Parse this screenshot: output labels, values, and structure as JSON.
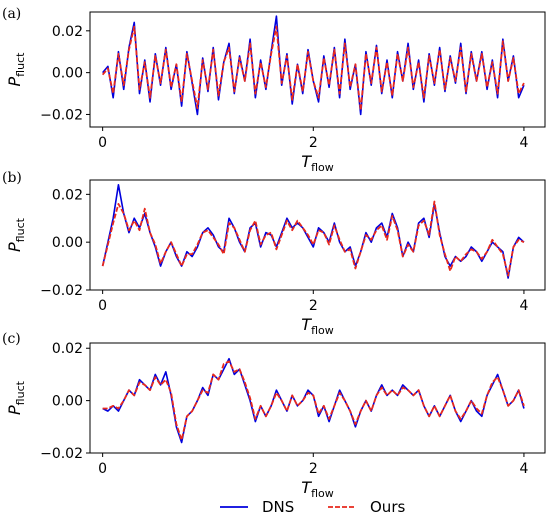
{
  "chart_data": [
    {
      "type": "line",
      "panel_label": "(a)",
      "xlabel": "T",
      "xlabel_sub": "flow",
      "ylabel": "P",
      "ylabel_sub": "fluct",
      "xlim": [
        -0.12,
        4.2
      ],
      "ylim": [
        -0.026,
        0.029
      ],
      "xticks": [
        0,
        2,
        4
      ],
      "xtick_labels": [
        "0",
        "2",
        "4"
      ],
      "yticks": [
        -0.02,
        0.0,
        0.02
      ],
      "ytick_labels": [
        "−0.02",
        "0.00",
        "0.02"
      ],
      "grid": false,
      "x": [
        0,
        0.05,
        0.1,
        0.15,
        0.2,
        0.25,
        0.3,
        0.35,
        0.4,
        0.45,
        0.5,
        0.55,
        0.6,
        0.65,
        0.7,
        0.75,
        0.8,
        0.85,
        0.9,
        0.95,
        1.0,
        1.05,
        1.1,
        1.15,
        1.2,
        1.25,
        1.3,
        1.35,
        1.4,
        1.45,
        1.5,
        1.55,
        1.6,
        1.65,
        1.7,
        1.75,
        1.8,
        1.85,
        1.9,
        1.95,
        2.0,
        2.05,
        2.1,
        2.15,
        2.2,
        2.25,
        2.3,
        2.35,
        2.4,
        2.45,
        2.5,
        2.55,
        2.6,
        2.65,
        2.7,
        2.75,
        2.8,
        2.85,
        2.9,
        2.95,
        3.0,
        3.05,
        3.1,
        3.15,
        3.2,
        3.25,
        3.3,
        3.35,
        3.4,
        3.45,
        3.5,
        3.55,
        3.6,
        3.65,
        3.7,
        3.75,
        3.8,
        3.85,
        3.9,
        3.95,
        4.0
      ],
      "series": [
        {
          "name": "DNS",
          "color": "#0000dd",
          "dash": "solid",
          "values": [
            0.0,
            0.003,
            -0.012,
            0.01,
            -0.008,
            0.012,
            0.024,
            -0.01,
            0.006,
            -0.014,
            0.009,
            -0.006,
            0.012,
            -0.008,
            0.004,
            -0.016,
            0.01,
            -0.005,
            -0.02,
            0.007,
            -0.009,
            0.012,
            -0.013,
            0.005,
            0.014,
            -0.01,
            0.008,
            -0.004,
            0.016,
            -0.012,
            0.006,
            -0.008,
            0.01,
            0.027,
            -0.006,
            0.009,
            -0.015,
            0.004,
            -0.01,
            0.011,
            -0.004,
            -0.014,
            0.008,
            -0.007,
            0.012,
            -0.012,
            0.016,
            -0.008,
            0.004,
            -0.02,
            0.01,
            -0.006,
            0.013,
            -0.01,
            0.006,
            -0.012,
            0.01,
            -0.004,
            0.014,
            -0.008,
            0.006,
            -0.014,
            0.009,
            -0.006,
            0.012,
            -0.009,
            0.008,
            -0.005,
            0.014,
            -0.01,
            0.01,
            -0.004,
            0.01,
            -0.008,
            0.006,
            -0.012,
            0.016,
            -0.004,
            0.008,
            -0.012,
            -0.006
          ]
        },
        {
          "name": "Ours",
          "color": "#e8291c",
          "dash": "dashed",
          "values": [
            -0.001,
            0.002,
            -0.01,
            0.009,
            -0.006,
            0.011,
            0.022,
            -0.008,
            0.005,
            -0.012,
            0.008,
            -0.005,
            0.011,
            -0.007,
            0.004,
            -0.014,
            0.009,
            -0.004,
            -0.017,
            0.006,
            -0.008,
            0.011,
            -0.011,
            0.005,
            0.012,
            -0.009,
            0.007,
            -0.004,
            0.014,
            -0.01,
            0.005,
            -0.007,
            0.009,
            0.022,
            -0.005,
            0.008,
            -0.013,
            0.004,
            -0.009,
            0.01,
            -0.004,
            -0.012,
            0.007,
            -0.006,
            0.011,
            -0.01,
            0.014,
            -0.007,
            0.004,
            -0.018,
            0.009,
            -0.005,
            0.012,
            -0.009,
            0.005,
            -0.011,
            0.009,
            -0.004,
            0.012,
            -0.007,
            0.005,
            -0.012,
            0.008,
            -0.005,
            0.011,
            -0.008,
            0.007,
            -0.004,
            0.012,
            -0.009,
            0.009,
            -0.004,
            0.009,
            -0.007,
            0.005,
            -0.01,
            0.015,
            -0.004,
            0.007,
            -0.01,
            -0.005
          ]
        }
      ]
    },
    {
      "type": "line",
      "panel_label": "(b)",
      "xlabel": "T",
      "xlabel_sub": "flow",
      "ylabel": "P",
      "ylabel_sub": "fluct",
      "xlim": [
        -0.12,
        4.2
      ],
      "ylim": [
        -0.02,
        0.026
      ],
      "xticks": [
        0,
        2,
        4
      ],
      "xtick_labels": [
        "0",
        "2",
        "4"
      ],
      "yticks": [
        -0.02,
        0.0,
        0.02
      ],
      "ytick_labels": [
        "−0.02",
        "0.00",
        "0.02"
      ],
      "grid": false,
      "x": [
        0,
        0.05,
        0.1,
        0.15,
        0.2,
        0.25,
        0.3,
        0.35,
        0.4,
        0.45,
        0.5,
        0.55,
        0.6,
        0.65,
        0.7,
        0.75,
        0.8,
        0.85,
        0.9,
        0.95,
        1.0,
        1.05,
        1.1,
        1.15,
        1.2,
        1.25,
        1.3,
        1.35,
        1.4,
        1.45,
        1.5,
        1.55,
        1.6,
        1.65,
        1.7,
        1.75,
        1.8,
        1.85,
        1.9,
        1.95,
        2.0,
        2.05,
        2.1,
        2.15,
        2.2,
        2.25,
        2.3,
        2.35,
        2.4,
        2.45,
        2.5,
        2.55,
        2.6,
        2.65,
        2.7,
        2.75,
        2.8,
        2.85,
        2.9,
        2.95,
        3.0,
        3.05,
        3.1,
        3.15,
        3.2,
        3.25,
        3.3,
        3.35,
        3.4,
        3.45,
        3.5,
        3.55,
        3.6,
        3.65,
        3.7,
        3.75,
        3.8,
        3.85,
        3.9,
        3.95,
        4.0
      ],
      "series": [
        {
          "name": "DNS",
          "color": "#0000dd",
          "dash": "solid",
          "values": [
            -0.01,
            0.0,
            0.01,
            0.024,
            0.012,
            0.004,
            0.01,
            0.006,
            0.012,
            0.004,
            -0.002,
            -0.01,
            -0.004,
            0.0,
            -0.006,
            -0.01,
            -0.004,
            -0.006,
            -0.002,
            0.004,
            0.006,
            0.003,
            -0.002,
            -0.004,
            0.01,
            0.006,
            0.0,
            -0.004,
            0.006,
            0.008,
            -0.002,
            0.004,
            0.003,
            -0.002,
            0.004,
            0.01,
            0.006,
            0.008,
            0.006,
            0.002,
            -0.002,
            0.006,
            0.004,
            0.0,
            0.008,
            0.0,
            -0.004,
            -0.002,
            -0.01,
            -0.004,
            0.004,
            0.0,
            0.006,
            0.008,
            0.002,
            0.012,
            0.006,
            -0.006,
            0.0,
            -0.004,
            0.008,
            0.01,
            0.002,
            0.016,
            0.004,
            -0.006,
            -0.01,
            -0.006,
            -0.008,
            -0.006,
            -0.002,
            -0.004,
            -0.008,
            -0.004,
            0.0,
            -0.002,
            -0.004,
            -0.015,
            -0.002,
            0.002,
            0.0
          ]
        },
        {
          "name": "Ours",
          "color": "#e8291c",
          "dash": "dashed",
          "values": [
            -0.01,
            -0.001,
            0.008,
            0.016,
            0.012,
            0.005,
            0.009,
            0.005,
            0.014,
            0.004,
            -0.001,
            -0.009,
            -0.004,
            0.0,
            -0.005,
            -0.01,
            -0.005,
            -0.005,
            -0.001,
            0.004,
            0.005,
            0.002,
            -0.001,
            -0.005,
            0.008,
            0.006,
            0.001,
            -0.004,
            0.005,
            0.009,
            -0.001,
            0.003,
            0.004,
            -0.003,
            0.003,
            0.009,
            0.005,
            0.009,
            0.006,
            0.003,
            -0.001,
            0.005,
            0.004,
            -0.001,
            0.007,
            0.001,
            -0.004,
            -0.003,
            -0.011,
            -0.004,
            0.003,
            0.001,
            0.005,
            0.007,
            0.001,
            0.011,
            0.005,
            -0.006,
            -0.001,
            -0.004,
            0.007,
            0.009,
            0.003,
            0.017,
            0.003,
            -0.005,
            -0.012,
            -0.006,
            -0.008,
            -0.005,
            -0.003,
            -0.004,
            -0.007,
            -0.004,
            0.001,
            -0.002,
            -0.005,
            -0.014,
            -0.002,
            0.001,
            0.0
          ]
        }
      ]
    },
    {
      "type": "line",
      "panel_label": "(c)",
      "xlabel": "T",
      "xlabel_sub": "flow",
      "ylabel": "P",
      "ylabel_sub": "fluct",
      "xlim": [
        -0.12,
        4.2
      ],
      "ylim": [
        -0.02,
        0.022
      ],
      "xticks": [
        0,
        2,
        4
      ],
      "xtick_labels": [
        "0",
        "2",
        "4"
      ],
      "yticks": [
        -0.02,
        0.0,
        0.02
      ],
      "ytick_labels": [
        "−0.02",
        "0.00",
        "0.02"
      ],
      "grid": false,
      "x": [
        0,
        0.05,
        0.1,
        0.15,
        0.2,
        0.25,
        0.3,
        0.35,
        0.4,
        0.45,
        0.5,
        0.55,
        0.6,
        0.65,
        0.7,
        0.75,
        0.8,
        0.85,
        0.9,
        0.95,
        1.0,
        1.05,
        1.1,
        1.15,
        1.2,
        1.25,
        1.3,
        1.35,
        1.4,
        1.45,
        1.5,
        1.55,
        1.6,
        1.65,
        1.7,
        1.75,
        1.8,
        1.85,
        1.9,
        1.95,
        2.0,
        2.05,
        2.1,
        2.15,
        2.2,
        2.25,
        2.3,
        2.35,
        2.4,
        2.45,
        2.5,
        2.55,
        2.6,
        2.65,
        2.7,
        2.75,
        2.8,
        2.85,
        2.9,
        2.95,
        3.0,
        3.05,
        3.1,
        3.15,
        3.2,
        3.25,
        3.3,
        3.35,
        3.4,
        3.45,
        3.5,
        3.55,
        3.6,
        3.65,
        3.7,
        3.75,
        3.8,
        3.85,
        3.9,
        3.95,
        4.0
      ],
      "series": [
        {
          "name": "DNS",
          "color": "#0000dd",
          "dash": "solid",
          "values": [
            -0.003,
            -0.004,
            -0.002,
            -0.004,
            0.0,
            0.004,
            0.002,
            0.008,
            0.006,
            0.004,
            0.01,
            0.006,
            0.011,
            0.002,
            -0.01,
            -0.016,
            -0.006,
            -0.004,
            0.0,
            0.005,
            0.002,
            0.01,
            0.008,
            0.012,
            0.016,
            0.01,
            0.012,
            0.006,
            0.0,
            -0.008,
            -0.002,
            -0.006,
            -0.002,
            0.004,
            0.0,
            -0.004,
            0.002,
            -0.002,
            0.0,
            0.004,
            0.002,
            -0.006,
            -0.002,
            -0.008,
            -0.002,
            0.004,
            0.0,
            -0.004,
            -0.01,
            -0.004,
            0.0,
            -0.004,
            0.002,
            0.006,
            0.002,
            0.004,
            0.002,
            0.006,
            0.004,
            0.002,
            0.004,
            -0.002,
            -0.006,
            -0.002,
            -0.006,
            -0.002,
            0.002,
            -0.004,
            -0.008,
            -0.004,
            0.0,
            -0.004,
            -0.006,
            0.002,
            0.006,
            0.01,
            0.004,
            -0.002,
            0.0,
            0.004,
            -0.003
          ]
        },
        {
          "name": "Ours",
          "color": "#e8291c",
          "dash": "dashed",
          "values": [
            -0.003,
            -0.003,
            -0.002,
            -0.003,
            0.0,
            0.004,
            0.002,
            0.007,
            0.006,
            0.004,
            0.009,
            0.006,
            0.008,
            0.003,
            -0.009,
            -0.015,
            -0.006,
            -0.004,
            0.0,
            0.004,
            0.003,
            0.01,
            0.008,
            0.014,
            0.015,
            0.011,
            0.012,
            0.007,
            0.001,
            -0.007,
            -0.002,
            -0.006,
            -0.002,
            0.003,
            0.0,
            -0.004,
            0.002,
            -0.002,
            0.0,
            0.003,
            0.002,
            -0.005,
            -0.002,
            -0.007,
            -0.002,
            0.003,
            0.0,
            -0.004,
            -0.009,
            -0.004,
            0.0,
            -0.004,
            0.002,
            0.005,
            0.002,
            0.004,
            0.002,
            0.005,
            0.004,
            0.002,
            0.004,
            -0.002,
            -0.006,
            -0.002,
            -0.006,
            -0.002,
            0.002,
            -0.004,
            -0.007,
            -0.004,
            0.0,
            -0.003,
            -0.005,
            0.002,
            0.007,
            0.009,
            0.004,
            -0.002,
            0.0,
            0.004,
            -0.002
          ]
        }
      ]
    }
  ],
  "legend": {
    "placement": "bottom-center",
    "entries": [
      {
        "label": "DNS",
        "color": "#0000dd",
        "dash": "solid"
      },
      {
        "label": "Ours",
        "color": "#e8291c",
        "dash": "dashed"
      }
    ]
  }
}
